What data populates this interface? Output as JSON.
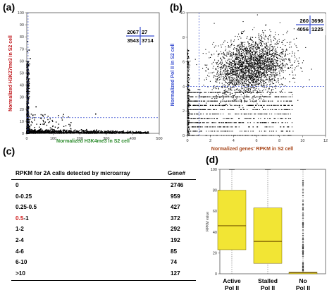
{
  "panels": {
    "a": {
      "label": "(a)"
    },
    "b": {
      "label": "(b)"
    },
    "c": {
      "label": "(c)"
    },
    "d": {
      "label": "(d)"
    }
  },
  "chart_data": [
    {
      "id": "a",
      "type": "scatter",
      "xlabel": "Normalized H3K4me3 in S2 cell",
      "ylabel": "Normalized H3K27me3 in S2 cell",
      "xlim": [
        0,
        500
      ],
      "ylim": [
        0,
        100
      ],
      "xticks": [
        0,
        100,
        200,
        300,
        400,
        500
      ],
      "yticks": [
        0,
        10,
        20,
        30,
        40,
        50,
        60,
        70,
        80,
        90,
        100
      ],
      "threshold_x": 5,
      "threshold_y": 13,
      "quadrant_counts": {
        "top_left": "2067",
        "top_right": "27",
        "bottom_left": "3543",
        "bottom_right": "3714"
      },
      "colors": {
        "xlabel": "#2a8a2a",
        "ylabel": "#c0161b",
        "threshold": "#3a4fd0"
      }
    },
    {
      "id": "b",
      "type": "scatter",
      "xlabel": "Normalized genes' RPKM in S2 cell",
      "ylabel": "Normalized Pol II in S2 cell",
      "xlim": [
        0,
        12
      ],
      "ylim": [
        0,
        10
      ],
      "xticks": [
        0,
        2,
        4,
        6,
        8,
        10,
        12
      ],
      "yticks": [
        0,
        2,
        4,
        6,
        8,
        10
      ],
      "threshold_x": 1,
      "threshold_y": 4,
      "quadrant_counts": {
        "top_left": "260",
        "top_right": "3696",
        "bottom_left": "4056",
        "bottom_right": "1225"
      },
      "colors": {
        "xlabel": "#a8461a",
        "ylabel": "#3a4fd0",
        "threshold": "#3a4fd0"
      }
    },
    {
      "id": "c",
      "type": "table",
      "columns": [
        "RPKM  for 2A calls detected by microarray",
        "Gene#"
      ],
      "rows": [
        {
          "rpkm": "0",
          "genes": "2746"
        },
        {
          "rpkm": "0-0.25",
          "genes": "959"
        },
        {
          "rpkm": "0.25-0.5",
          "genes": "427"
        },
        {
          "rpkm_red": "0.5",
          "rpkm_rest": "-1",
          "genes": "372"
        },
        {
          "rpkm": "1-2",
          "genes": "292"
        },
        {
          "rpkm": "2-4",
          "genes": "192"
        },
        {
          "rpkm": "4-6",
          "genes": "85"
        },
        {
          "rpkm": "6-10",
          "genes": "74"
        },
        {
          "rpkm": ">10",
          "genes": "127"
        }
      ]
    },
    {
      "id": "d",
      "type": "box",
      "ylabel": "RPKM value",
      "ylim": [
        0,
        100
      ],
      "yticks": [
        0,
        20,
        40,
        60,
        80,
        100
      ],
      "categories": [
        "Active\nPol II",
        "Stalled\nPol II",
        "No\nPol II"
      ],
      "boxes": [
        {
          "q1": 23,
          "median": 46,
          "q3": 80
        },
        {
          "q1": 10,
          "median": 31,
          "q3": 63
        },
        {
          "q1": 0,
          "median": 1,
          "q3": 1.5
        }
      ],
      "colors": {
        "box": "#f2e534",
        "median": "#7a5a00",
        "whisker": "#222222"
      }
    }
  ]
}
